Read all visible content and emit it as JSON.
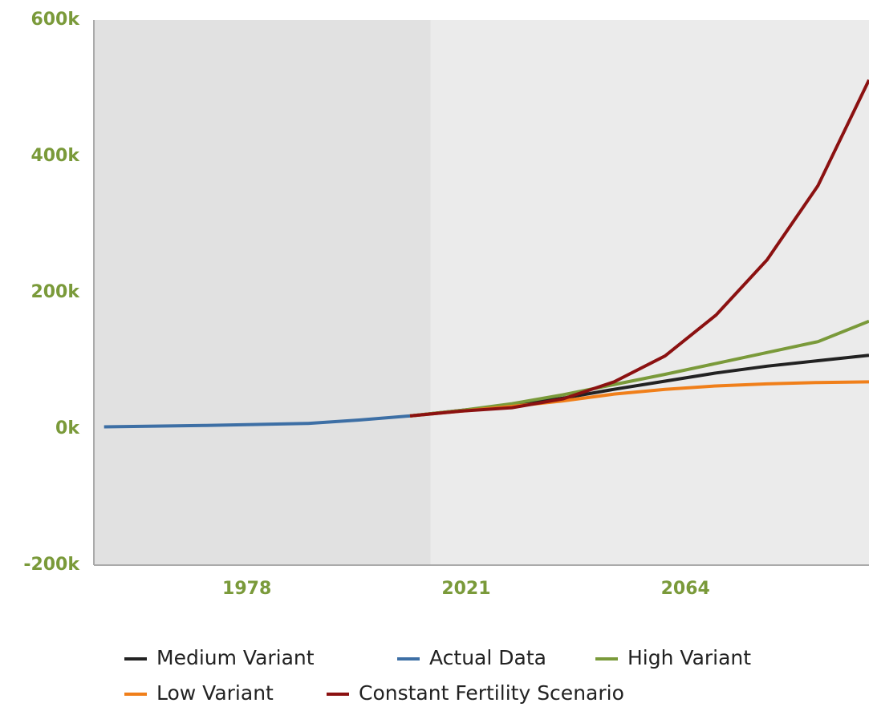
{
  "chart_data": {
    "type": "line",
    "xlim": [
      1948,
      2100
    ],
    "xticks": [
      1978,
      2021,
      2064
    ],
    "ylim": [
      -200000,
      600000
    ],
    "yticks": [
      {
        "value": -200000,
        "label": "-200k"
      },
      {
        "value": 0,
        "label": "0k"
      },
      {
        "value": 200000,
        "label": "200k"
      },
      {
        "value": 400000,
        "label": "400k"
      },
      {
        "value": 600000,
        "label": "600k"
      }
    ],
    "shaded_xlim": [
      1948,
      2014
    ],
    "series": [
      {
        "name": "Medium Variant",
        "color": "#222222",
        "x": [
          2010,
          2020,
          2030,
          2040,
          2050,
          2060,
          2070,
          2080,
          2090,
          2100
        ],
        "values": [
          19000,
          27000,
          35000,
          45000,
          58000,
          70000,
          82000,
          92000,
          100000,
          108000
        ]
      },
      {
        "name": "Actual Data",
        "color": "#3d6fa5",
        "x": [
          1950,
          1960,
          1970,
          1980,
          1990,
          2000,
          2010
        ],
        "values": [
          3000,
          4000,
          5000,
          6500,
          8000,
          13000,
          19000
        ]
      },
      {
        "name": "High Variant",
        "color": "#7a9a3a",
        "x": [
          2010,
          2020,
          2030,
          2040,
          2050,
          2060,
          2070,
          2080,
          2090,
          2100
        ],
        "values": [
          19000,
          27000,
          37000,
          50000,
          65000,
          80000,
          96000,
          112000,
          128000,
          158000
        ]
      },
      {
        "name": "Low Variant",
        "color": "#f07f1a",
        "x": [
          2010,
          2020,
          2030,
          2040,
          2050,
          2060,
          2070,
          2080,
          2090,
          2100
        ],
        "values": [
          19000,
          26000,
          33000,
          41000,
          51000,
          58000,
          63000,
          66000,
          68000,
          69000
        ]
      },
      {
        "name": "Constant Fertility Scenario",
        "color": "#8b1111",
        "x": [
          2010,
          2020,
          2030,
          2040,
          2050,
          2060,
          2070,
          2080,
          2090,
          2100
        ],
        "values": [
          19000,
          26000,
          31000,
          44000,
          69000,
          107000,
          167000,
          248000,
          357000,
          512000
        ]
      }
    ]
  }
}
